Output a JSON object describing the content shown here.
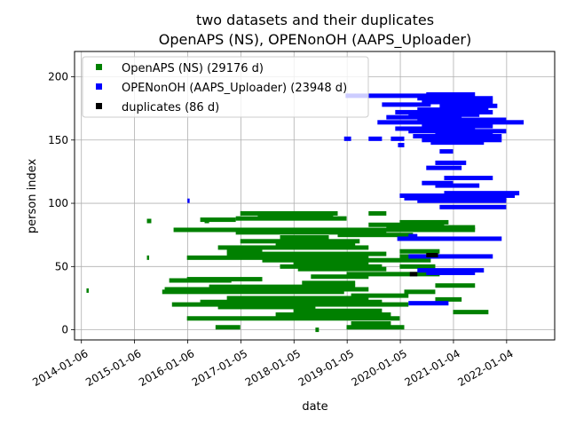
{
  "chart_data": {
    "type": "scatter",
    "title_line1": "two datasets and their duplicates",
    "title_line2": "OpenAPS (NS), OPENonOH (AAPS_Uploader)",
    "xlabel": "date",
    "ylabel": "person index",
    "x_scale": "date",
    "xlim": [
      "2013-11-20",
      "2022-11-30"
    ],
    "ylim": [
      -8,
      220
    ],
    "x_ticks": [
      "2014-01-06",
      "2015-01-06",
      "2016-01-06",
      "2017-01-05",
      "2018-01-05",
      "2019-01-05",
      "2020-01-05",
      "2021-01-04",
      "2022-01-04"
    ],
    "y_ticks": [
      0,
      50,
      100,
      150,
      200
    ],
    "grid": true,
    "legend_position": "upper-left",
    "colors": {
      "openaps": "#008000",
      "openonoh": "#0000ff",
      "duplicates": "#000000",
      "grid": "#b0b0b0"
    },
    "series": [
      {
        "name": "OpenAPS (NS) (29176 d)",
        "color": "#008000",
        "segments": [
          {
            "y": 31,
            "start": "2014-02-10",
            "end": "2014-02-20"
          },
          {
            "y": 57,
            "start": "2015-04-01",
            "end": "2015-04-10"
          },
          {
            "y": 30,
            "start": "2015-07-15",
            "end": "2018-12-15"
          },
          {
            "y": 32,
            "start": "2015-08-01",
            "end": "2019-06-01"
          },
          {
            "y": 34,
            "start": "2016-06-01",
            "end": "2019-03-01"
          },
          {
            "y": 39,
            "start": "2015-09-01",
            "end": "2016-11-01"
          },
          {
            "y": 40,
            "start": "2016-01-01",
            "end": "2017-06-01"
          },
          {
            "y": 20,
            "start": "2015-09-20",
            "end": "2020-03-01"
          },
          {
            "y": 22,
            "start": "2016-04-01",
            "end": "2019-09-01"
          },
          {
            "y": 18,
            "start": "2016-08-01",
            "end": "2018-06-01"
          },
          {
            "y": 9,
            "start": "2016-01-01",
            "end": "2020-01-01"
          },
          {
            "y": 12,
            "start": "2017-09-01",
            "end": "2019-11-01"
          },
          {
            "y": 2,
            "start": "2016-07-15",
            "end": "2017-01-01"
          },
          {
            "y": 2,
            "start": "2019-01-01",
            "end": "2020-02-01"
          },
          {
            "y": 5,
            "start": "2019-02-01",
            "end": "2019-11-01"
          },
          {
            "y": 79,
            "start": "2015-10-01",
            "end": "2021-06-01"
          },
          {
            "y": 81,
            "start": "2019-10-01",
            "end": "2021-06-01"
          },
          {
            "y": 77,
            "start": "2016-12-01",
            "end": "2019-10-01"
          },
          {
            "y": 87,
            "start": "2016-04-01",
            "end": "2016-12-01"
          },
          {
            "y": 88,
            "start": "2016-12-01",
            "end": "2019-01-01"
          },
          {
            "y": 90,
            "start": "2017-05-01",
            "end": "2018-10-01"
          },
          {
            "y": 92,
            "start": "2017-01-01",
            "end": "2018-11-01"
          },
          {
            "y": 92,
            "start": "2019-06-01",
            "end": "2019-10-01"
          },
          {
            "y": 85,
            "start": "2020-01-01",
            "end": "2020-12-01"
          },
          {
            "y": 83,
            "start": "2019-06-01",
            "end": "2020-11-01"
          },
          {
            "y": 65,
            "start": "2016-08-01",
            "end": "2019-06-01"
          },
          {
            "y": 63,
            "start": "2016-10-01",
            "end": "2017-06-01"
          },
          {
            "y": 60,
            "start": "2016-10-01",
            "end": "2019-10-01"
          },
          {
            "y": 57,
            "start": "2016-01-01",
            "end": "2019-06-01"
          },
          {
            "y": 55,
            "start": "2017-06-01",
            "end": "2020-08-01"
          },
          {
            "y": 52,
            "start": "2018-01-01",
            "end": "2019-06-01"
          },
          {
            "y": 50,
            "start": "2017-10-01",
            "end": "2019-09-01"
          },
          {
            "y": 48,
            "start": "2018-02-01",
            "end": "2019-10-01"
          },
          {
            "y": 44,
            "start": "2019-01-01",
            "end": "2020-10-01"
          },
          {
            "y": 42,
            "start": "2018-05-01",
            "end": "2019-06-01"
          },
          {
            "y": 37,
            "start": "2018-03-01",
            "end": "2019-03-01"
          },
          {
            "y": 27,
            "start": "2019-02-01",
            "end": "2020-03-01"
          },
          {
            "y": 25,
            "start": "2016-10-01",
            "end": "2019-06-01"
          },
          {
            "y": 15,
            "start": "2018-01-01",
            "end": "2019-09-01"
          },
          {
            "y": 68,
            "start": "2017-09-01",
            "end": "2019-03-01"
          },
          {
            "y": 70,
            "start": "2017-01-01",
            "end": "2019-04-01"
          },
          {
            "y": 73,
            "start": "2017-10-01",
            "end": "2018-09-01"
          },
          {
            "y": 75,
            "start": "2018-11-01",
            "end": "2020-04-01"
          },
          {
            "y": 72,
            "start": "2020-01-01",
            "end": "2020-10-01"
          },
          {
            "y": 62,
            "start": "2020-01-01",
            "end": "2020-10-01"
          },
          {
            "y": 58,
            "start": "2020-01-01",
            "end": "2020-10-01"
          },
          {
            "y": 50,
            "start": "2020-01-01",
            "end": "2020-09-01"
          },
          {
            "y": 14,
            "start": "2021-01-01",
            "end": "2021-09-01"
          },
          {
            "y": 24,
            "start": "2020-09-01",
            "end": "2021-03-01"
          },
          {
            "y": 30,
            "start": "2020-02-01",
            "end": "2020-09-01"
          },
          {
            "y": 35,
            "start": "2020-09-01",
            "end": "2021-06-01"
          },
          {
            "y": 0,
            "start": "2018-06-01",
            "end": "2018-06-25"
          },
          {
            "y": 86,
            "start": "2015-04-01",
            "end": "2015-05-01"
          },
          {
            "y": 86,
            "start": "2016-05-01",
            "end": "2016-06-01"
          }
        ]
      },
      {
        "name": "OPENonOH (AAPS_Uploader) (23948 d)",
        "color": "#0000ff",
        "segments": [
          {
            "y": 102,
            "start": "2016-01-04",
            "end": "2016-01-12"
          },
          {
            "y": 185,
            "start": "2018-12-25",
            "end": "2021-05-01"
          },
          {
            "y": 183,
            "start": "2020-05-01",
            "end": "2021-10-01"
          },
          {
            "y": 186,
            "start": "2020-07-01",
            "end": "2021-06-01"
          },
          {
            "y": 180,
            "start": "2020-06-01",
            "end": "2021-10-01"
          },
          {
            "y": 178,
            "start": "2019-09-01",
            "end": "2020-08-01"
          },
          {
            "y": 177,
            "start": "2020-10-01",
            "end": "2021-11-01"
          },
          {
            "y": 174,
            "start": "2020-05-01",
            "end": "2021-09-01"
          },
          {
            "y": 172,
            "start": "2019-12-01",
            "end": "2021-10-01"
          },
          {
            "y": 170,
            "start": "2020-03-01",
            "end": "2021-07-01"
          },
          {
            "y": 168,
            "start": "2019-10-01",
            "end": "2021-03-01"
          },
          {
            "y": 166,
            "start": "2020-05-01",
            "end": "2022-01-01"
          },
          {
            "y": 164,
            "start": "2019-08-01",
            "end": "2022-05-01"
          },
          {
            "y": 161,
            "start": "2020-06-01",
            "end": "2021-10-01"
          },
          {
            "y": 159,
            "start": "2019-12-01",
            "end": "2021-06-01"
          },
          {
            "y": 157,
            "start": "2020-03-01",
            "end": "2022-01-01"
          },
          {
            "y": 155,
            "start": "2020-09-01",
            "end": "2021-10-01"
          },
          {
            "y": 153,
            "start": "2020-04-01",
            "end": "2021-12-01"
          },
          {
            "y": 151,
            "start": "2018-12-15",
            "end": "2019-02-01"
          },
          {
            "y": 151,
            "start": "2019-06-01",
            "end": "2019-09-01"
          },
          {
            "y": 151,
            "start": "2019-11-01",
            "end": "2020-02-01"
          },
          {
            "y": 150,
            "start": "2020-06-01",
            "end": "2021-12-01"
          },
          {
            "y": 148,
            "start": "2020-08-01",
            "end": "2021-08-01"
          },
          {
            "y": 146,
            "start": "2019-12-20",
            "end": "2020-02-01"
          },
          {
            "y": 141,
            "start": "2020-10-01",
            "end": "2021-01-01"
          },
          {
            "y": 132,
            "start": "2020-09-01",
            "end": "2021-04-01"
          },
          {
            "y": 128,
            "start": "2020-07-01",
            "end": "2021-03-01"
          },
          {
            "y": 120,
            "start": "2020-11-01",
            "end": "2021-10-01"
          },
          {
            "y": 116,
            "start": "2020-06-01",
            "end": "2021-01-01"
          },
          {
            "y": 114,
            "start": "2020-09-01",
            "end": "2021-07-01"
          },
          {
            "y": 108,
            "start": "2020-11-01",
            "end": "2022-04-01"
          },
          {
            "y": 106,
            "start": "2020-01-01",
            "end": "2022-03-01"
          },
          {
            "y": 104,
            "start": "2020-02-01",
            "end": "2022-01-01"
          },
          {
            "y": 102,
            "start": "2020-05-01",
            "end": "2022-01-01"
          },
          {
            "y": 97,
            "start": "2020-10-01",
            "end": "2022-01-01"
          },
          {
            "y": 72,
            "start": "2019-12-15",
            "end": "2021-12-01"
          },
          {
            "y": 58,
            "start": "2020-03-01",
            "end": "2021-10-01"
          },
          {
            "y": 47,
            "start": "2020-05-01",
            "end": "2021-08-01"
          },
          {
            "y": 45,
            "start": "2020-07-01",
            "end": "2021-06-01"
          },
          {
            "y": 21,
            "start": "2020-03-01",
            "end": "2020-12-01"
          },
          {
            "y": 74,
            "start": "2020-03-01",
            "end": "2020-05-01"
          }
        ]
      },
      {
        "name": "duplicates (86 d)",
        "color": "#000000",
        "segments": [
          {
            "y": 59,
            "start": "2020-07-01",
            "end": "2020-09-20"
          },
          {
            "y": 44,
            "start": "2020-03-10",
            "end": "2020-05-01"
          }
        ]
      }
    ]
  }
}
